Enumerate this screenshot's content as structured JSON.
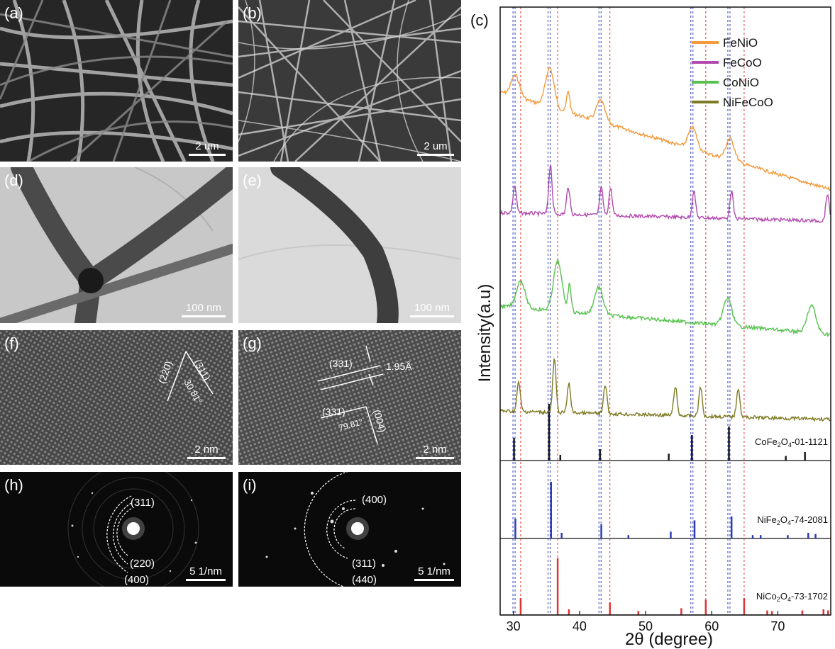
{
  "panels": {
    "a": {
      "label": "(a)",
      "scale": "2 um"
    },
    "b": {
      "label": "(b)",
      "scale": "2 um"
    },
    "d": {
      "label": "(d)",
      "scale": "100 nm"
    },
    "e": {
      "label": "(e)",
      "scale": "100 nm"
    },
    "f": {
      "label": "(f)",
      "scale": "2 nm",
      "ann": [
        "(220)",
        "(311)",
        "30.81°"
      ]
    },
    "g": {
      "label": "(g)",
      "scale": "2 nm",
      "ann": [
        "(331)",
        "1.95Å",
        "(331)",
        "(004)",
        "79.81°"
      ]
    },
    "h": {
      "label": "(h)",
      "scale": "5 1/nm",
      "rings": [
        "(311)",
        "(220)",
        "(400)"
      ]
    },
    "i": {
      "label": "(i)",
      "scale": "5 1/nm",
      "rings": [
        "(400)",
        "(311)",
        "(440)"
      ]
    }
  },
  "chart_data": {
    "label": "(c)",
    "type": "line",
    "xlabel": "2θ (degree)",
    "ylabel": "Intensity(a.u)",
    "xlim": [
      28,
      78
    ],
    "xticks": [
      "30",
      "40",
      "50",
      "60",
      "70"
    ],
    "legend_position": "top-right",
    "series": [
      {
        "name": "FeNiO",
        "color": "#f39a3c",
        "peaks": [
          30.3,
          35.5,
          38.3,
          43.2,
          57.1,
          62.8
        ]
      },
      {
        "name": "FeCoO",
        "color": "#b24aad",
        "peaks": [
          30.2,
          35.6,
          38.3,
          43.3,
          44.7,
          57.3,
          63.0,
          77.5
        ]
      },
      {
        "name": "CoNiO",
        "color": "#56c24d",
        "peaks": [
          31.1,
          36.7,
          38.5,
          42.9,
          62.4,
          75.1
        ]
      },
      {
        "name": "NiFeCoO",
        "color": "#7d7a23",
        "peaks": [
          30.8,
          36.2,
          38.4,
          43.9,
          54.5,
          58.3,
          64.0
        ]
      }
    ],
    "references": [
      {
        "name": "CoFe2O4-01-1121",
        "formula": "CoFe",
        "sub": "2",
        "rest": "O",
        "sub2": "4",
        "tail": "-01-1121",
        "color": "#1a1a1a",
        "sticks": [
          [
            30.1,
            0.4
          ],
          [
            35.4,
            1.0
          ],
          [
            37.1,
            0.1
          ],
          [
            43.1,
            0.2
          ],
          [
            53.5,
            0.12
          ],
          [
            57.0,
            0.45
          ],
          [
            62.6,
            0.6
          ],
          [
            71.2,
            0.08
          ],
          [
            74.1,
            0.15
          ]
        ]
      },
      {
        "name": "NiFe2O4-74-2081",
        "formula": "NiFe",
        "sub": "2",
        "rest": "O",
        "sub2": "4",
        "tail": "-74-2081",
        "color": "#2d3db5",
        "sticks": [
          [
            30.3,
            0.35
          ],
          [
            35.7,
            1.0
          ],
          [
            37.3,
            0.1
          ],
          [
            43.3,
            0.25
          ],
          [
            47.4,
            0.06
          ],
          [
            53.8,
            0.12
          ],
          [
            57.4,
            0.32
          ],
          [
            63.0,
            0.39
          ],
          [
            66.2,
            0.06
          ],
          [
            67.4,
            0.06
          ],
          [
            71.5,
            0.06
          ],
          [
            74.6,
            0.1
          ],
          [
            75.7,
            0.08
          ]
        ]
      },
      {
        "name": "NiCo2O4-73-1702",
        "formula": "NiCo",
        "sub": "2",
        "rest": "O",
        "sub2": "4",
        "tail": "-73-1702",
        "color": "#e03434",
        "sticks": [
          [
            31.1,
            0.3
          ],
          [
            36.7,
            1.0
          ],
          [
            38.4,
            0.1
          ],
          [
            44.6,
            0.22
          ],
          [
            48.9,
            0.07
          ],
          [
            55.4,
            0.12
          ],
          [
            59.1,
            0.27
          ],
          [
            64.9,
            0.3
          ],
          [
            68.4,
            0.08
          ],
          [
            69.1,
            0.07
          ],
          [
            73.7,
            0.08
          ],
          [
            76.9,
            0.1
          ],
          [
            77.6,
            0.08
          ]
        ]
      }
    ],
    "dashed_blue": [
      30.1,
      35.4,
      43.1,
      57.0,
      62.6
    ],
    "dashed_red": [
      31.1,
      36.7,
      44.6,
      59.1,
      64.9
    ]
  }
}
